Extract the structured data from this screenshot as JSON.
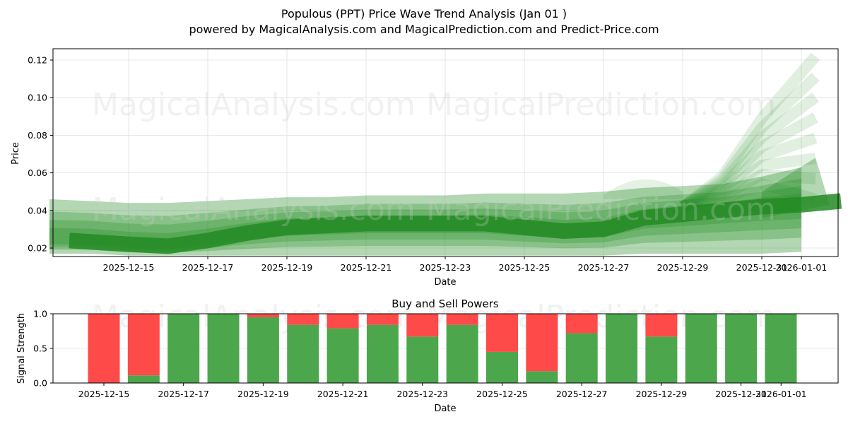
{
  "header": {
    "title": "Populous (PPT) Price Wave Trend Analysis (Jan 01 )",
    "subtitle": "powered by MagicalAnalysis.com and MagicalPrediction.com and Predict-Price.com"
  },
  "watermarks": [
    "MagicalAnalysis.com",
    "MagicalPrediction.com"
  ],
  "colors": {
    "wave_green": "#228B22",
    "buy_green": "#4CA64C",
    "sell_red": "#FF4A4A",
    "grid": "#e0e0e0"
  },
  "chart_data": [
    {
      "type": "area",
      "title": "Populous (PPT) Price Wave Trend Analysis (Jan 01 )",
      "xlabel": "Date",
      "ylabel": "Price",
      "ylim": [
        0.015,
        0.126
      ],
      "grid": true,
      "x_ticks": [
        "2025-12-15",
        "2025-12-17",
        "2025-12-19",
        "2025-12-21",
        "2025-12-23",
        "2025-12-25",
        "2025-12-27",
        "2025-12-29",
        "2025-12-31",
        "2026-01-01"
      ],
      "x_tick_labels_rendered": [
        "2025-12-15",
        "2025-12-17",
        "2025-12-19",
        "2025-12-21",
        "2025-12-23",
        "2025-12-25",
        "2025-12-27",
        "2025-12-29",
        "2025-12-31",
        "2026-01-01"
      ],
      "y_ticks": [
        0.02,
        0.04,
        0.06,
        0.08,
        0.1,
        0.12
      ],
      "y_tick_labels": [
        "0.02",
        "0.04",
        "0.06",
        "0.08",
        "0.10",
        "0.12"
      ],
      "x": [
        "2025-12-13",
        "2025-12-14",
        "2025-12-15",
        "2025-12-16",
        "2025-12-17",
        "2025-12-18",
        "2025-12-19",
        "2025-12-20",
        "2025-12-21",
        "2025-12-22",
        "2025-12-23",
        "2025-12-24",
        "2025-12-25",
        "2025-12-26",
        "2025-12-27",
        "2025-12-28",
        "2025-12-29",
        "2025-12-30",
        "2025-12-31",
        "2026-01-01",
        "2026-01-02"
      ],
      "series": [
        {
          "name": "central wave",
          "values": [
            null,
            0.024,
            0.022,
            0.021,
            0.024,
            0.028,
            0.031,
            0.032,
            0.033,
            0.033,
            0.033,
            0.033,
            0.031,
            0.029,
            0.03,
            0.036,
            0.038,
            0.04,
            0.042,
            0.043,
            0.045
          ]
        },
        {
          "name": "band upper",
          "values": [
            0.046,
            0.045,
            0.044,
            0.044,
            0.045,
            0.046,
            0.047,
            0.047,
            0.048,
            0.048,
            0.048,
            0.049,
            0.049,
            0.049,
            0.05,
            0.052,
            0.053,
            0.054,
            0.058,
            0.063,
            0.067
          ]
        },
        {
          "name": "band lower",
          "values": [
            0.017,
            0.017,
            0.016,
            0.016,
            0.016,
            0.016,
            0.016,
            0.016,
            0.016,
            0.016,
            0.016,
            0.016,
            0.016,
            0.016,
            0.016,
            0.017,
            0.017,
            0.017,
            0.017,
            0.018,
            0.02
          ]
        },
        {
          "name": "forecast upper fan",
          "values": [
            null,
            null,
            null,
            null,
            null,
            null,
            null,
            null,
            null,
            null,
            null,
            null,
            null,
            null,
            null,
            0.058,
            0.05,
            0.056,
            0.085,
            0.122,
            null
          ]
        }
      ]
    },
    {
      "type": "bar",
      "title": "Buy and Sell Powers",
      "xlabel": "Date",
      "ylabel": "Signal Strength",
      "ylim": [
        0,
        1.0
      ],
      "y_ticks": [
        0.0,
        0.5,
        1.0
      ],
      "y_tick_labels": [
        "0.0",
        "0.5",
        "1.0"
      ],
      "x_tick_labels": [
        "2025-12-15",
        "2025-12-17",
        "2025-12-19",
        "2025-12-21",
        "2025-12-23",
        "2025-12-25",
        "2025-12-27",
        "2025-12-29",
        "2025-12-31",
        "2026-01-01"
      ],
      "categories": [
        "2025-12-15",
        "2025-12-16",
        "2025-12-17",
        "2025-12-18",
        "2025-12-19",
        "2025-12-20",
        "2025-12-21",
        "2025-12-22",
        "2025-12-23",
        "2025-12-24",
        "2025-12-25",
        "2025-12-26",
        "2025-12-27",
        "2025-12-28",
        "2025-12-29",
        "2025-12-30",
        "2025-12-31",
        "2026-01-01"
      ],
      "series": [
        {
          "name": "Buy",
          "color": "#4CA64C",
          "values": [
            0.0,
            0.11,
            1.0,
            1.0,
            0.95,
            0.84,
            0.79,
            0.84,
            0.67,
            0.84,
            0.45,
            0.17,
            0.72,
            1.0,
            0.67,
            1.0,
            1.0,
            1.0
          ]
        },
        {
          "name": "Sell",
          "color": "#FF4A4A",
          "values": [
            1.0,
            0.89,
            0.0,
            0.0,
            0.05,
            0.16,
            0.21,
            0.16,
            0.33,
            0.16,
            0.55,
            0.83,
            0.28,
            0.0,
            0.33,
            0.0,
            0.0,
            0.0
          ]
        }
      ]
    }
  ]
}
